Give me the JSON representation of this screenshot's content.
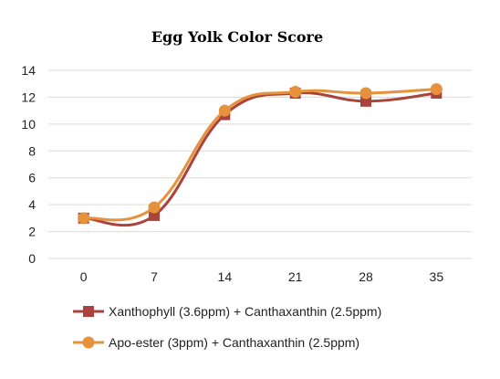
{
  "chart_data": {
    "type": "line",
    "title": "Egg Yolk Color Score",
    "xlabel": "",
    "ylabel": "",
    "x": [
      0,
      7,
      14,
      21,
      28,
      35
    ],
    "x_tick_labels": [
      "0",
      "7",
      "14",
      "21",
      "28",
      "35"
    ],
    "ylim": [
      0,
      14
    ],
    "y_ticks": [
      0,
      2,
      4,
      6,
      8,
      10,
      12,
      14
    ],
    "y_tick_labels": [
      "0",
      "2",
      "4",
      "6",
      "8",
      "10",
      "12",
      "14"
    ],
    "grid": true,
    "legend_position": "bottom",
    "series": [
      {
        "name": "Xanthophyll (3.6ppm) + Canthaxanthin (2.5ppm)",
        "values": [
          3.0,
          3.2,
          10.7,
          12.3,
          11.7,
          12.3
        ],
        "color": "#a9433b",
        "marker": "square"
      },
      {
        "name": "Apo-ester (3ppm) + Canthaxanthin (2.5ppm)",
        "values": [
          3.0,
          3.8,
          11.0,
          12.4,
          12.3,
          12.6
        ],
        "color": "#e6913c",
        "marker": "circle"
      }
    ]
  }
}
